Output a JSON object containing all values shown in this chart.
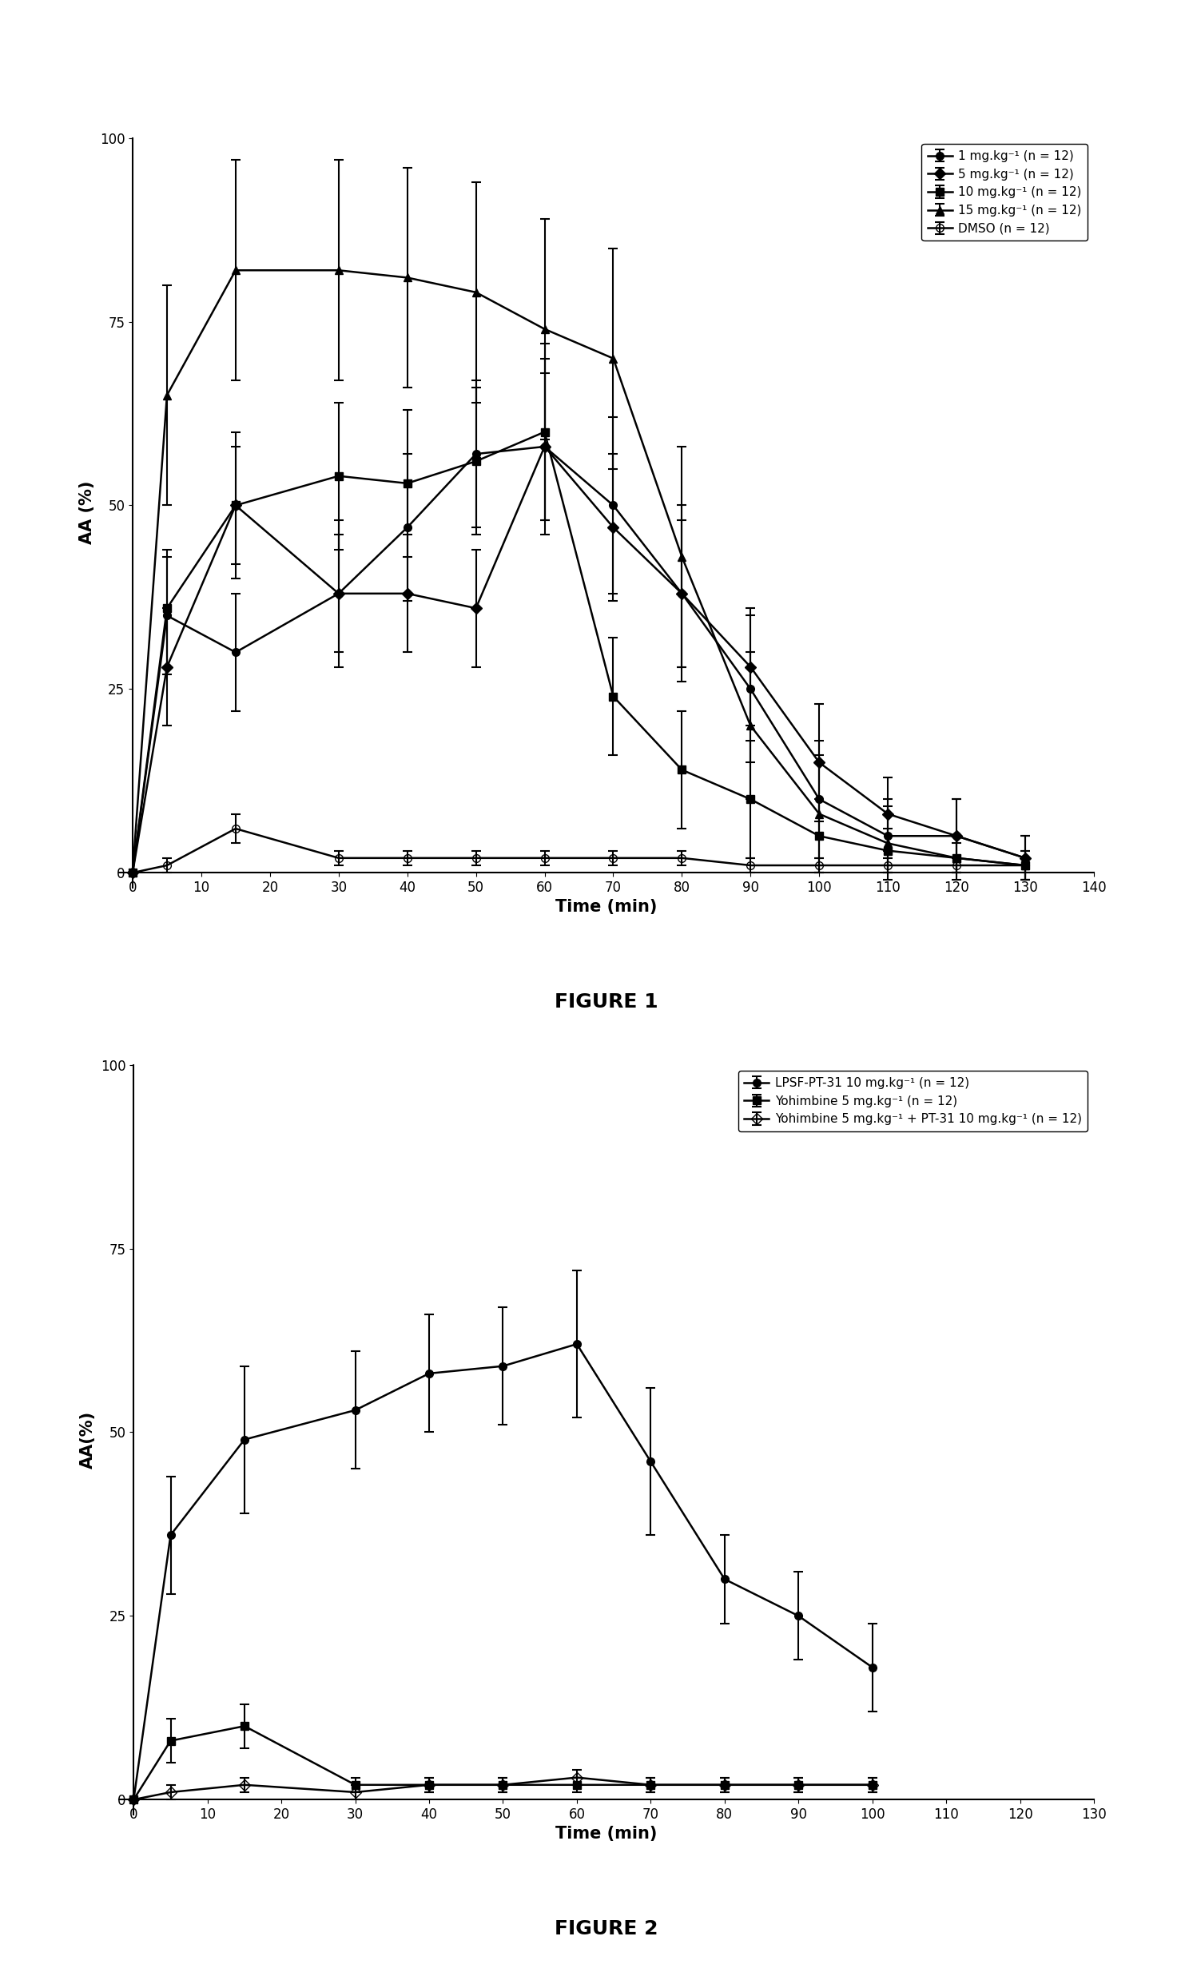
{
  "fig1": {
    "title": "FIGURE 1",
    "xlabel": "Time (min)",
    "ylabel": "AA (%)",
    "xlim": [
      -2,
      140
    ],
    "ylim": [
      -2,
      100
    ],
    "xticks": [
      0,
      10,
      20,
      30,
      40,
      50,
      60,
      70,
      80,
      90,
      100,
      110,
      120,
      130,
      140
    ],
    "yticks": [
      0,
      25,
      50,
      75,
      100
    ],
    "series": [
      {
        "label": "1 mg.kg⁻¹ (n = 12)",
        "marker": "o",
        "color": "black",
        "fillstyle": "full",
        "x": [
          0,
          5,
          15,
          30,
          40,
          50,
          60,
          70,
          80,
          90,
          100,
          110,
          120,
          130
        ],
        "y": [
          0,
          35,
          30,
          38,
          47,
          57,
          58,
          50,
          38,
          25,
          10,
          5,
          5,
          2
        ],
        "yerr": [
          0,
          8,
          8,
          10,
          10,
          10,
          12,
          12,
          12,
          10,
          8,
          5,
          5,
          3
        ]
      },
      {
        "label": "5 mg.kg⁻¹ (n = 12)",
        "marker": "D",
        "color": "black",
        "fillstyle": "full",
        "x": [
          0,
          5,
          15,
          30,
          40,
          50,
          60,
          70,
          80,
          90,
          100,
          110,
          120,
          130
        ],
        "y": [
          0,
          28,
          50,
          38,
          38,
          36,
          58,
          47,
          38,
          28,
          15,
          8,
          5,
          2
        ],
        "yerr": [
          0,
          8,
          10,
          8,
          8,
          8,
          10,
          10,
          10,
          8,
          8,
          5,
          5,
          3
        ]
      },
      {
        "label": "10 mg.kg⁻¹ (n = 12)",
        "marker": "s",
        "color": "black",
        "fillstyle": "full",
        "x": [
          0,
          5,
          15,
          30,
          40,
          50,
          60,
          70,
          80,
          90,
          100,
          110,
          120,
          130
        ],
        "y": [
          0,
          36,
          50,
          54,
          53,
          56,
          60,
          24,
          14,
          10,
          5,
          3,
          2,
          1
        ],
        "yerr": [
          0,
          8,
          8,
          10,
          10,
          10,
          12,
          8,
          8,
          8,
          5,
          3,
          2,
          2
        ]
      },
      {
        "label": "15 mg.kg⁻¹ (n = 12)",
        "marker": "^",
        "color": "black",
        "fillstyle": "full",
        "x": [
          0,
          5,
          15,
          30,
          40,
          50,
          60,
          70,
          80,
          90,
          100,
          110,
          120,
          130
        ],
        "y": [
          0,
          65,
          82,
          82,
          81,
          79,
          74,
          70,
          43,
          20,
          8,
          4,
          2,
          1
        ],
        "yerr": [
          0,
          15,
          15,
          15,
          15,
          15,
          15,
          15,
          15,
          10,
          8,
          5,
          3,
          2
        ]
      },
      {
        "label": "DMSO (n = 12)",
        "marker": "o",
        "color": "black",
        "fillstyle": "none",
        "x": [
          0,
          5,
          15,
          30,
          40,
          50,
          60,
          70,
          80,
          90,
          100,
          110,
          120,
          130
        ],
        "y": [
          0,
          1,
          6,
          2,
          2,
          2,
          2,
          2,
          2,
          1,
          1,
          1,
          1,
          1
        ],
        "yerr": [
          0,
          1,
          2,
          1,
          1,
          1,
          1,
          1,
          1,
          1,
          1,
          1,
          1,
          1
        ]
      }
    ]
  },
  "fig2": {
    "title": "FIGURE 2",
    "xlabel": "Time (min)",
    "ylabel": "AA(%)",
    "xlim": [
      -2,
      130
    ],
    "ylim": [
      -2,
      100
    ],
    "xticks": [
      0,
      10,
      20,
      30,
      40,
      50,
      60,
      70,
      80,
      90,
      100,
      110,
      120,
      130
    ],
    "yticks": [
      0,
      25,
      50,
      75,
      100
    ],
    "series": [
      {
        "label": "LPSF-PT-31 10 mg.kg⁻¹ (n = 12)",
        "marker": "o",
        "color": "black",
        "fillstyle": "full",
        "x": [
          0,
          5,
          15,
          30,
          40,
          50,
          60,
          70,
          80,
          90,
          100
        ],
        "y": [
          0,
          36,
          49,
          53,
          58,
          59,
          62,
          46,
          30,
          25,
          18
        ],
        "yerr": [
          0,
          8,
          10,
          8,
          8,
          8,
          10,
          10,
          6,
          6,
          6
        ]
      },
      {
        "label": "Yohimbine 5 mg.kg⁻¹ (n = 12)",
        "marker": "s",
        "color": "black",
        "fillstyle": "full",
        "x": [
          0,
          5,
          15,
          30,
          40,
          50,
          60,
          70,
          80,
          90,
          100
        ],
        "y": [
          0,
          8,
          10,
          2,
          2,
          2,
          2,
          2,
          2,
          2,
          2
        ],
        "yerr": [
          0,
          3,
          3,
          1,
          1,
          1,
          1,
          1,
          1,
          1,
          1
        ]
      },
      {
        "label": "Yohimbine 5 mg.kg⁻¹ + PT-31 10 mg.kg⁻¹ (n = 12)",
        "marker": "D",
        "color": "black",
        "fillstyle": "none",
        "x": [
          0,
          5,
          15,
          30,
          40,
          50,
          60,
          70,
          80,
          90,
          100
        ],
        "y": [
          0,
          1,
          2,
          1,
          2,
          2,
          3,
          2,
          2,
          2,
          2
        ],
        "yerr": [
          0,
          1,
          1,
          1,
          1,
          1,
          1,
          1,
          1,
          1,
          1
        ]
      }
    ]
  }
}
